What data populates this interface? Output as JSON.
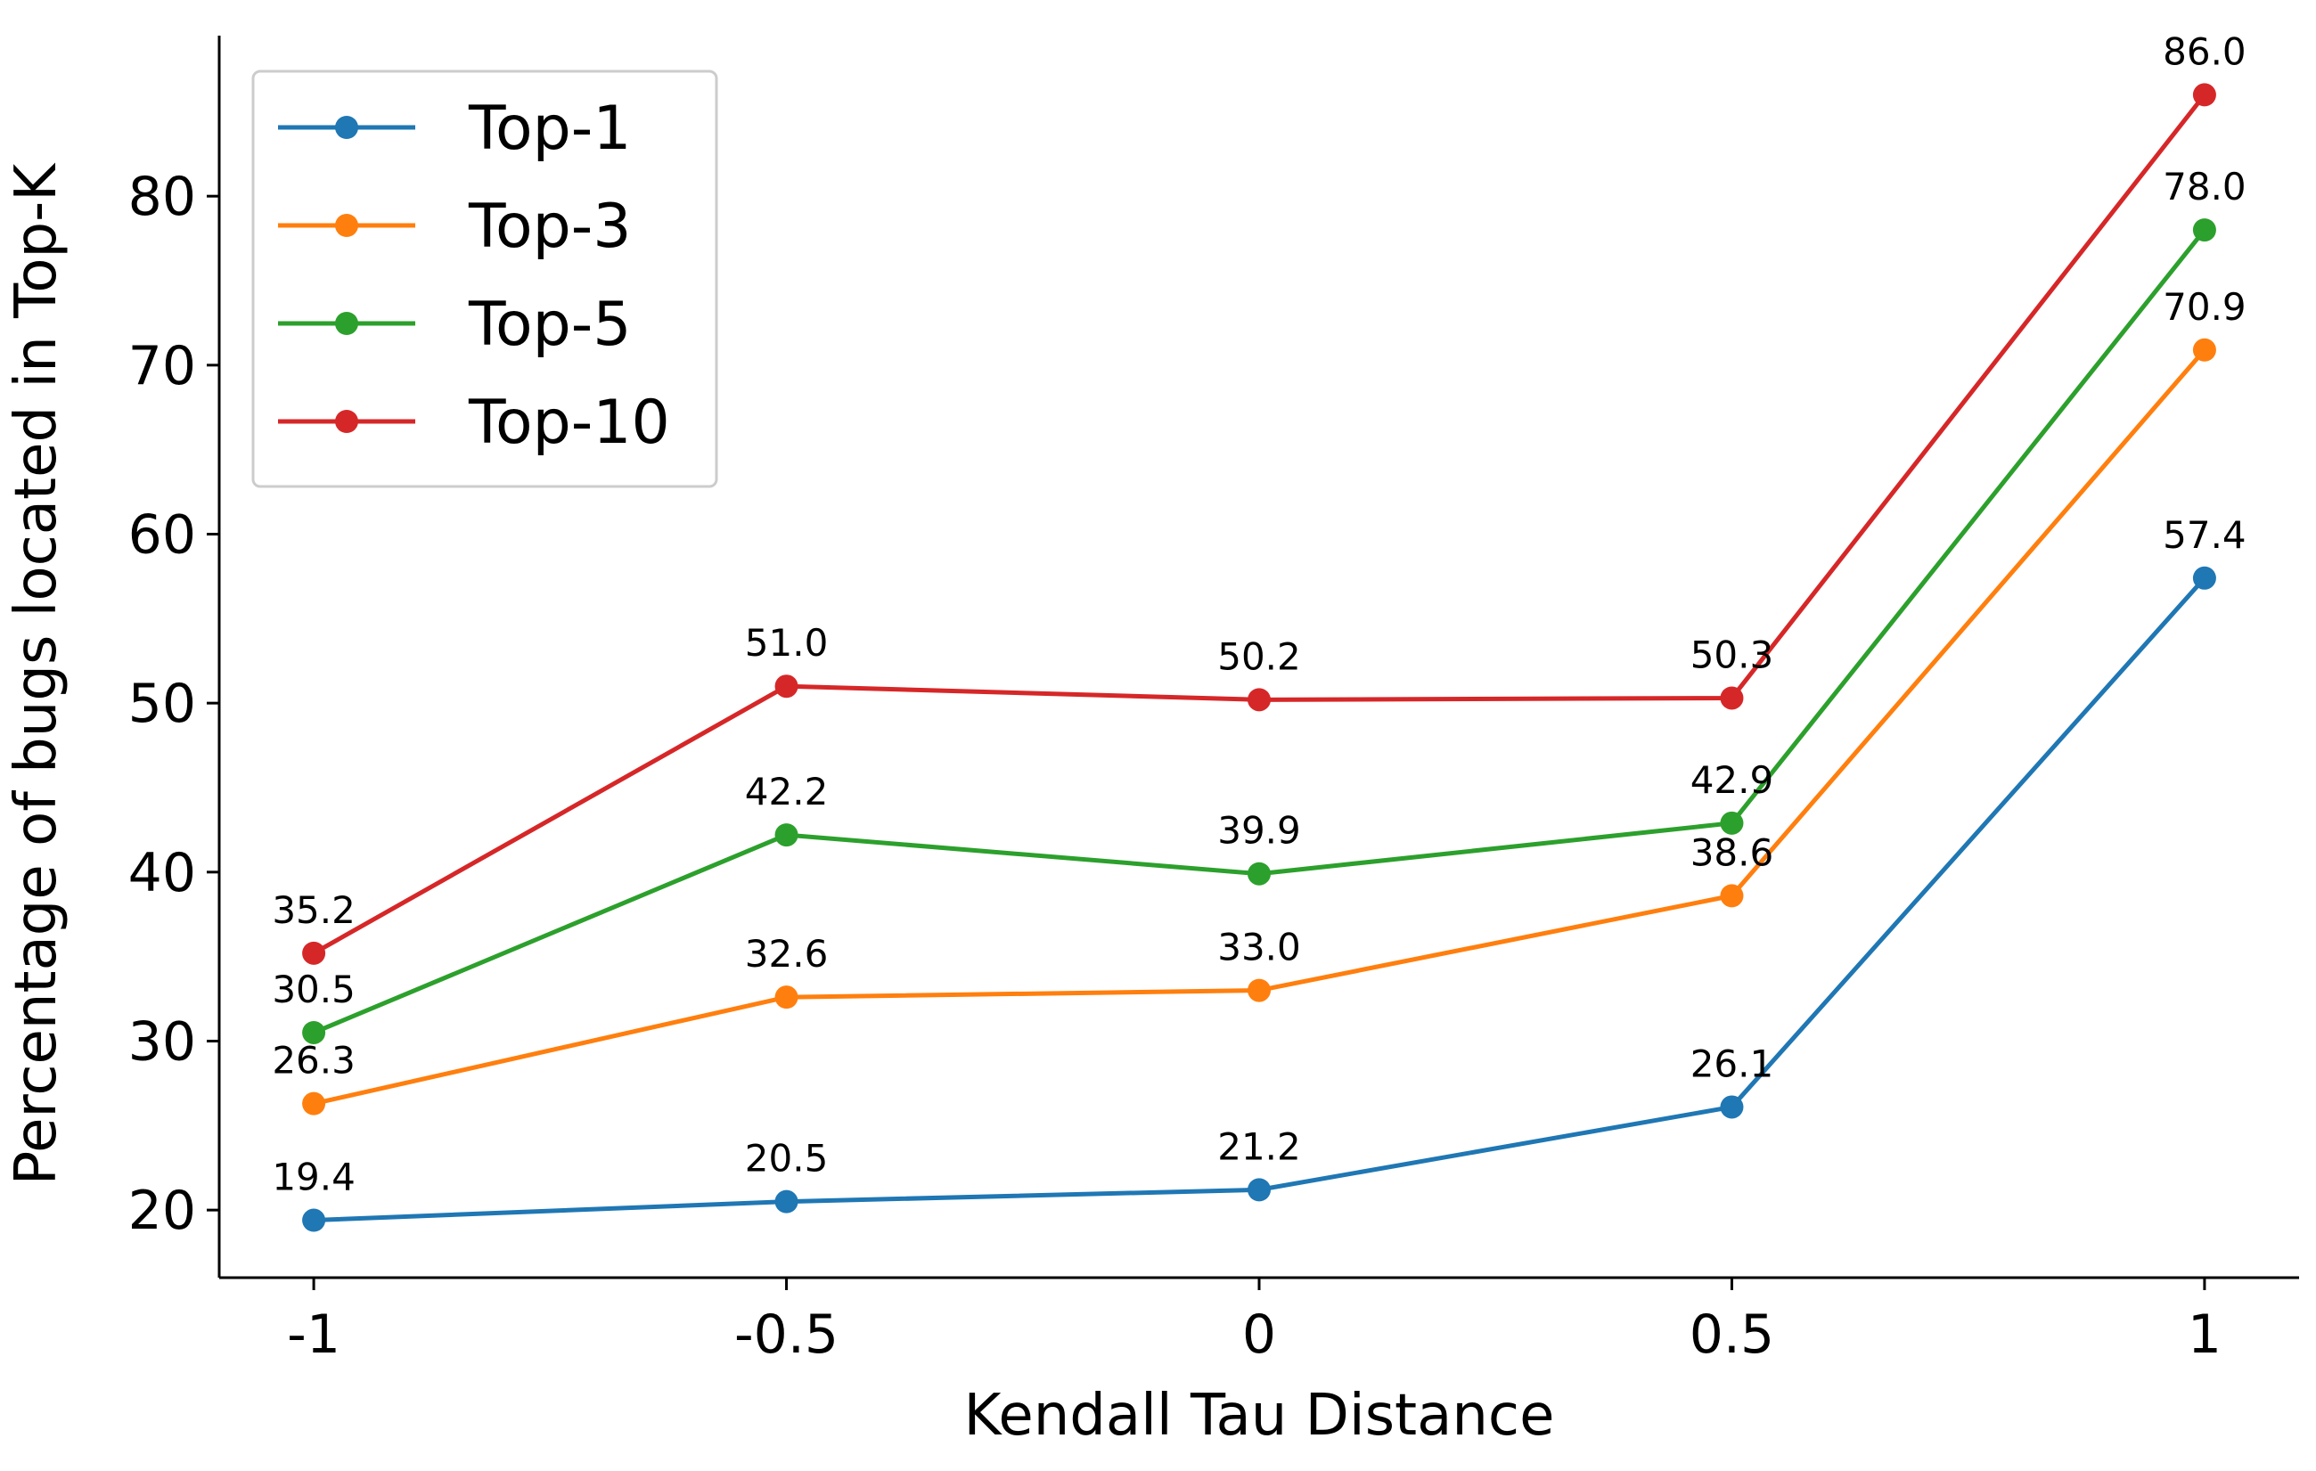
{
  "chart_data": {
    "type": "line",
    "xlabel": "Kendall Tau Distance",
    "ylabel": "Percentage of bugs located in Top-K",
    "x": [
      -1,
      -0.5,
      0,
      0.5,
      1
    ],
    "x_tick_labels": [
      "-1",
      "-0.5",
      "0",
      "0.5",
      "1"
    ],
    "y_ticks": [
      20,
      30,
      40,
      50,
      60,
      70,
      80
    ],
    "y_tick_labels": [
      "20",
      "30",
      "40",
      "50",
      "60",
      "70",
      "80"
    ],
    "xlim": [
      -1.1,
      1.1
    ],
    "ylim": [
      16,
      89.5
    ],
    "grid": false,
    "legend_position": "top-left",
    "series": [
      {
        "name": "Top-1",
        "color": "#1f77b4",
        "values": [
          19.4,
          20.5,
          21.2,
          26.1,
          57.4
        ],
        "labels": [
          "19.4",
          "20.5",
          "21.2",
          "26.1",
          "57.4"
        ]
      },
      {
        "name": "Top-3",
        "color": "#ff7f0e",
        "values": [
          26.3,
          32.6,
          33.0,
          38.6,
          70.9
        ],
        "labels": [
          "26.3",
          "32.6",
          "33.0",
          "38.6",
          "70.9"
        ]
      },
      {
        "name": "Top-5",
        "color": "#2ca02c",
        "values": [
          30.5,
          42.2,
          39.9,
          42.9,
          78.0
        ],
        "labels": [
          "30.5",
          "42.2",
          "39.9",
          "42.9",
          "78.0"
        ]
      },
      {
        "name": "Top-10",
        "color": "#d62728",
        "values": [
          35.2,
          51.0,
          50.2,
          50.3,
          86.0
        ],
        "labels": [
          "35.2",
          "51.0",
          "50.2",
          "50.3",
          "86.0"
        ]
      }
    ]
  }
}
